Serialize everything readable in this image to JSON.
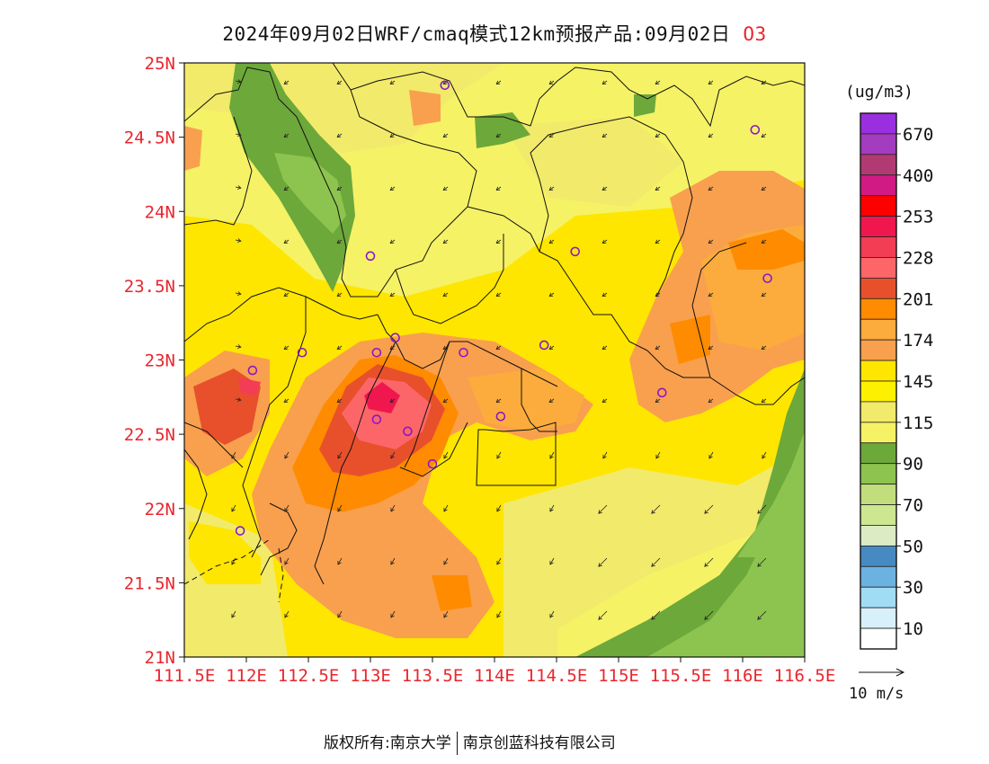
{
  "header": {
    "title": "2024年09月02日WRF/cmaq模式12km预报产品:09月02日",
    "species": "O3"
  },
  "map": {
    "lat_ticks": [
      "25N",
      "24.5N",
      "24N",
      "23.5N",
      "23N",
      "22.5N",
      "22N",
      "21.5N",
      "21N"
    ],
    "lon_ticks": [
      "111.5E",
      "112E",
      "112.5E",
      "113E",
      "113.5E",
      "114E",
      "114.5E",
      "115E",
      "115.5E",
      "116E",
      "116.5E"
    ],
    "extent": {
      "lon_min": 111.5,
      "lon_max": 116.5,
      "lat_min": 21,
      "lat_max": 25
    },
    "tick_color": "#e8262d",
    "stations": [
      [
        113.6,
        24.85
      ],
      [
        116.1,
        24.55
      ],
      [
        113.0,
        23.7
      ],
      [
        114.65,
        23.73
      ],
      [
        116.2,
        23.55
      ],
      [
        113.2,
        23.15
      ],
      [
        112.45,
        23.05
      ],
      [
        113.05,
        23.05
      ],
      [
        113.75,
        23.05
      ],
      [
        114.4,
        23.1
      ],
      [
        112.05,
        22.93
      ],
      [
        115.35,
        22.78
      ],
      [
        113.05,
        22.6
      ],
      [
        113.3,
        22.52
      ],
      [
        114.05,
        22.62
      ],
      [
        113.5,
        22.3
      ],
      [
        111.95,
        21.85
      ]
    ],
    "station_color": "#8a18c8"
  },
  "legend": {
    "unit": "(ug/m3)",
    "labels": [
      "670",
      "400",
      "253",
      "228",
      "201",
      "174",
      "145",
      "115",
      "90",
      "70",
      "50",
      "30",
      "10"
    ],
    "colors": [
      "#9a2fe0",
      "#a33cbf",
      "#b23a73",
      "#d11a84",
      "#ff0000",
      "#f0174e",
      "#f23d55",
      "#fd6669",
      "#e8502c",
      "#ff8b00",
      "#fcac3c",
      "#f9a04e",
      "#fee600",
      "#fdf000",
      "#f2ea6a",
      "#f5f266",
      "#6da83a",
      "#8dc450",
      "#c1dd7c",
      "#cde690",
      "#dcebc4",
      "#478ac1",
      "#6cb2e0",
      "#a1dcf5",
      "#d8f0fa",
      "#ffffff"
    ],
    "wind_scale_label": "10 m/s"
  },
  "footer": {
    "copyright": "版权所有:南京大学",
    "company": "南京创蓝科技有限公司"
  }
}
